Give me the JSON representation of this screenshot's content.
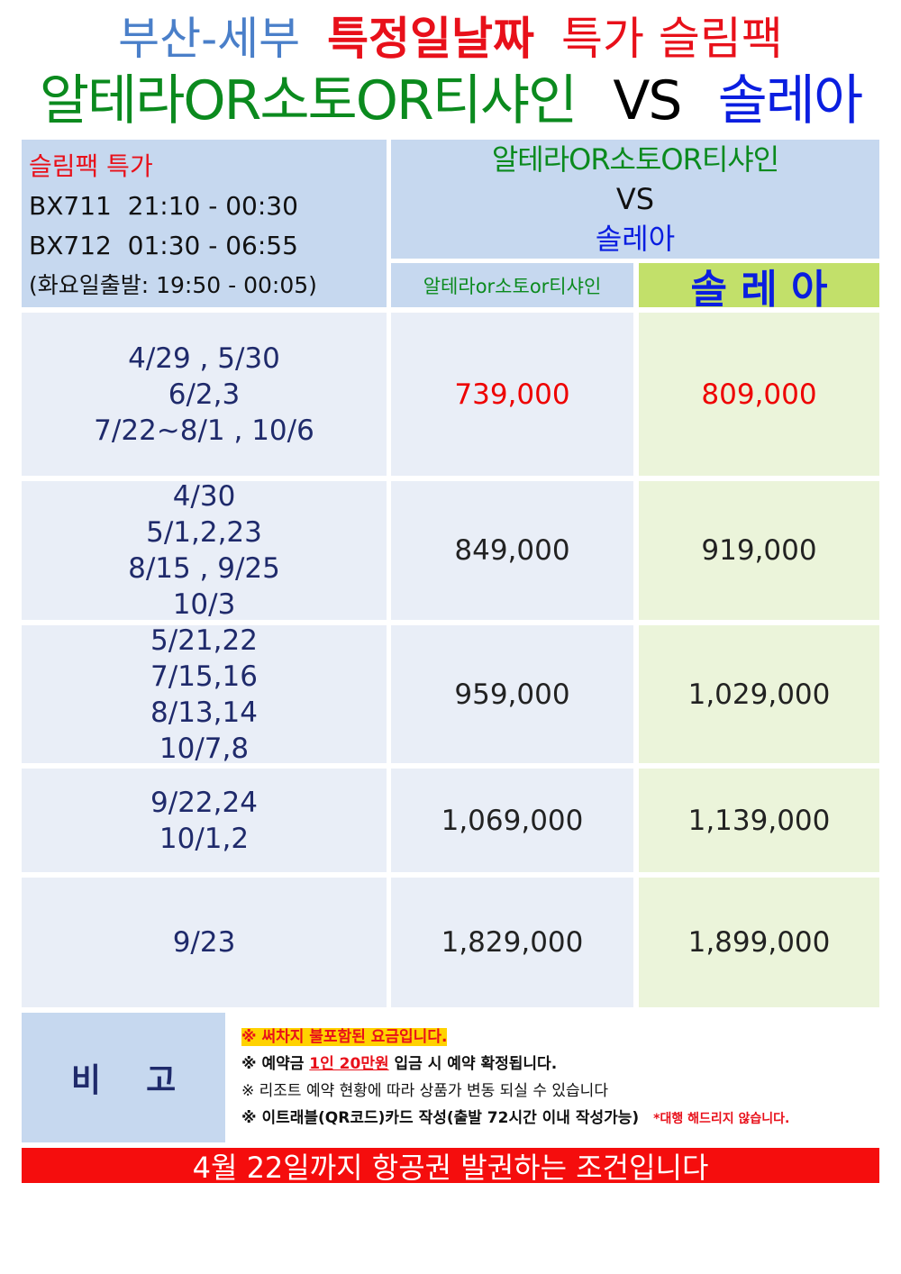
{
  "title": {
    "line1": {
      "route": "부산-세부",
      "special": "특정일날짜",
      "pack": "특가 슬림팩"
    },
    "line2": {
      "resort_a": "알테라OR소토OR티샤인",
      "vs": "VS",
      "resort_b": "솔레아"
    }
  },
  "header": {
    "promo": "슬림팩 특가",
    "flight1": "BX711  21:10 - 00:30",
    "flight2": "BX712  01:30 - 06:55",
    "tuesday": "(화요일출발: 19:50 - 00:05)",
    "compare_a": "알테라OR소토OR티샤인",
    "compare_vs": "VS",
    "compare_b": "솔레아",
    "col_a": "알테라or소토or티샤인",
    "col_b": "솔 레 아"
  },
  "rows": [
    {
      "dates": [
        "4/29 , 5/30",
        "6/2,3",
        "7/22~8/1 , 10/6"
      ],
      "price_a": "739,000",
      "price_b": "809,000",
      "highlight": true
    },
    {
      "dates": [
        "4/30",
        "5/1,2,23",
        "8/15 , 9/25",
        "10/3"
      ],
      "price_a": "849,000",
      "price_b": "919,000",
      "highlight": false
    },
    {
      "dates": [
        "5/21,22",
        "7/15,16",
        "8/13,14",
        "10/7,8"
      ],
      "price_a": "959,000",
      "price_b": "1,029,000",
      "highlight": false
    },
    {
      "dates": [
        "9/22,24",
        "10/1,2"
      ],
      "price_a": "1,069,000",
      "price_b": "1,139,000",
      "highlight": false
    },
    {
      "dates": [
        "9/23"
      ],
      "price_a": "1,829,000",
      "price_b": "1,899,000",
      "highlight": false
    }
  ],
  "notes": {
    "label": "비    고",
    "n1": "※ 써차지 불포함된 요금입니다.",
    "n2_pre": "※ 예약금 ",
    "n2_em": "1인 20만원",
    "n2_post": " 입금 시 예약 확정됩니다.",
    "n3": "※ 리조트 예약 현황에 따라 상품가 변동 되실 수 있습니다",
    "n4": "※ 이트래블(QR코드)카드 작성(출발 72시간 이내 작성가능)",
    "n4_red": "*대행 해드리지 않습니다."
  },
  "banner": "4월 22일까지 항공권 발권하는 조건입니다",
  "colors": {
    "blue_title": "#4a7fc9",
    "red": "#e8101a",
    "green": "#0b8a1e",
    "blue": "#0a1ee0",
    "header_bg": "#c6d8ef",
    "solea_bg": "#c2e06a"
  }
}
